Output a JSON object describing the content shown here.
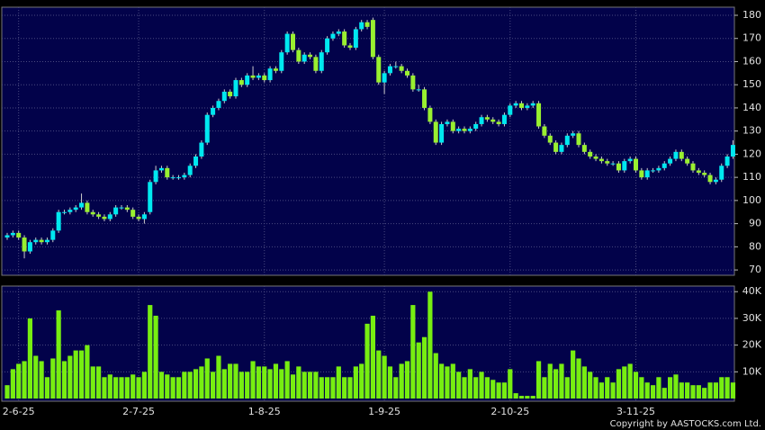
{
  "chart_data": [
    {
      "type": "candlestick",
      "open": [
        84,
        85,
        86,
        84,
        78,
        82,
        83,
        82,
        83,
        87,
        95,
        95,
        96,
        97,
        99,
        95,
        94,
        93,
        92,
        94,
        97,
        97,
        96,
        93,
        92,
        95,
        108,
        113,
        114,
        110,
        110,
        110,
        111,
        115,
        119,
        125,
        137,
        140,
        143,
        147,
        145,
        152,
        150,
        154,
        153,
        154,
        152,
        157,
        156,
        164,
        172,
        165,
        160,
        163,
        162,
        156,
        164,
        170,
        172,
        173,
        167,
        166,
        174,
        177,
        178,
        162,
        151,
        155,
        158,
        158,
        156,
        154,
        148,
        148,
        140,
        134,
        125,
        133,
        134,
        130,
        131,
        130,
        131,
        133,
        136,
        135,
        134,
        133,
        137,
        141,
        142,
        140,
        141,
        142,
        132,
        128,
        125,
        121,
        124,
        128,
        129,
        124,
        121,
        119,
        118,
        117,
        116,
        116,
        113,
        117,
        118,
        113,
        110,
        113,
        113,
        114,
        116,
        118,
        121,
        118,
        116,
        113,
        112,
        111,
        108,
        109,
        115,
        119
      ],
      "high": [
        86,
        87,
        87,
        85,
        83,
        84,
        84,
        84,
        88,
        96,
        96,
        97,
        98,
        103,
        100,
        96,
        95,
        94,
        95,
        98,
        98,
        98,
        97,
        94,
        95,
        109,
        115,
        115,
        115,
        111,
        111,
        112,
        116,
        120,
        126,
        138,
        141,
        144,
        148,
        148,
        153,
        153,
        155,
        158,
        155,
        155,
        158,
        158,
        165,
        173,
        173,
        166,
        164,
        164,
        163,
        165,
        171,
        173,
        174,
        174,
        168,
        175,
        178,
        178,
        179,
        163,
        156,
        159,
        160,
        159,
        157,
        155,
        150,
        149,
        141,
        135,
        134,
        135,
        135,
        132,
        132,
        132,
        134,
        137,
        137,
        136,
        135,
        138,
        142,
        143,
        143,
        142,
        143,
        143,
        133,
        129,
        126,
        125,
        129,
        130,
        130,
        125,
        122,
        120,
        119,
        118,
        117,
        117,
        118,
        119,
        119,
        114,
        114,
        114,
        115,
        117,
        119,
        122,
        122,
        119,
        117,
        114,
        113,
        112,
        110,
        116,
        120,
        126
      ],
      "low": [
        83,
        84,
        83,
        75,
        77,
        81,
        81,
        81,
        82,
        86,
        94,
        94,
        95,
        96,
        94,
        93,
        92,
        91,
        91,
        93,
        96,
        95,
        92,
        91,
        90,
        94,
        107,
        112,
        109,
        109,
        109,
        109,
        110,
        114,
        118,
        124,
        136,
        139,
        142,
        144,
        144,
        149,
        149,
        152,
        152,
        151,
        151,
        155,
        155,
        163,
        164,
        159,
        159,
        161,
        155,
        155,
        163,
        169,
        171,
        166,
        165,
        165,
        173,
        174,
        161,
        150,
        146,
        154,
        157,
        155,
        153,
        147,
        147,
        139,
        133,
        124,
        124,
        132,
        129,
        129,
        129,
        129,
        130,
        132,
        134,
        133,
        132,
        132,
        136,
        140,
        139,
        139,
        140,
        131,
        127,
        124,
        120,
        120,
        123,
        127,
        123,
        120,
        118,
        117,
        116,
        115,
        115,
        112,
        112,
        116,
        112,
        109,
        109,
        112,
        112,
        113,
        115,
        117,
        117,
        115,
        112,
        111,
        110,
        107,
        107,
        108,
        114,
        118
      ],
      "close": [
        85,
        86,
        84,
        78,
        82,
        83,
        82,
        83,
        87,
        95,
        95,
        96,
        97,
        99,
        95,
        94,
        93,
        92,
        94,
        97,
        97,
        96,
        93,
        92,
        94,
        108,
        113,
        114,
        110,
        110,
        110,
        111,
        115,
        119,
        125,
        137,
        140,
        143,
        147,
        145,
        152,
        150,
        154,
        153,
        154,
        152,
        157,
        156,
        164,
        172,
        165,
        160,
        163,
        162,
        156,
        164,
        170,
        172,
        173,
        167,
        166,
        174,
        177,
        175,
        162,
        151,
        155,
        158,
        158,
        156,
        154,
        148,
        148,
        140,
        134,
        125,
        133,
        134,
        130,
        131,
        130,
        131,
        133,
        136,
        135,
        134,
        133,
        137,
        141,
        142,
        140,
        141,
        142,
        132,
        128,
        125,
        121,
        124,
        128,
        129,
        124,
        121,
        119,
        118,
        117,
        116,
        116,
        113,
        117,
        118,
        113,
        110,
        113,
        113,
        114,
        116,
        118,
        121,
        118,
        116,
        113,
        112,
        111,
        108,
        109,
        115,
        119,
        124
      ],
      "up_color": "#00e8f0",
      "down_color": "#99f030",
      "ylim": [
        67.7,
        183.5
      ],
      "yticks": [
        70,
        80,
        90,
        100,
        110,
        120,
        130,
        140,
        150,
        160,
        170,
        180
      ],
      "grid": true
    },
    {
      "type": "bar",
      "categories": [
        null,
        null,
        "2-6-25",
        null,
        null,
        null,
        null,
        null,
        null,
        null,
        null,
        null,
        null,
        null,
        null,
        null,
        null,
        null,
        null,
        null,
        null,
        null,
        null,
        "2-7-25",
        null,
        null,
        null,
        null,
        null,
        null,
        null,
        null,
        null,
        null,
        null,
        null,
        null,
        null,
        null,
        null,
        null,
        null,
        null,
        null,
        null,
        "1-8-25",
        null,
        null,
        null,
        null,
        null,
        null,
        null,
        null,
        null,
        null,
        null,
        null,
        null,
        null,
        null,
        null,
        null,
        null,
        null,
        null,
        "1-9-25",
        null,
        null,
        null,
        null,
        null,
        null,
        null,
        null,
        null,
        null,
        null,
        null,
        null,
        null,
        null,
        null,
        null,
        null,
        null,
        null,
        null,
        "2-10-25",
        null,
        null,
        null,
        null,
        null,
        null,
        null,
        null,
        null,
        null,
        null,
        null,
        null,
        null,
        null,
        null,
        null,
        null,
        null,
        null,
        null,
        "3-11-25",
        null,
        null,
        null,
        null,
        null,
        null,
        null,
        null,
        null,
        null,
        null,
        null,
        null,
        null,
        null,
        null,
        null
      ],
      "values": [
        5000,
        11000,
        13000,
        14000,
        30000,
        16000,
        14000,
        8000,
        15000,
        33000,
        14000,
        16000,
        18000,
        18000,
        20000,
        12000,
        12000,
        8000,
        9000,
        8000,
        8000,
        8000,
        9000,
        8000,
        10000,
        35000,
        31000,
        10000,
        9000,
        8000,
        8000,
        10000,
        10000,
        11000,
        12000,
        15000,
        10000,
        16000,
        11000,
        13000,
        13000,
        10000,
        10000,
        14000,
        12000,
        12000,
        11000,
        13000,
        11000,
        14000,
        9000,
        12000,
        10000,
        10000,
        10000,
        8000,
        8000,
        8000,
        12000,
        8000,
        8000,
        12000,
        13000,
        28000,
        31000,
        18000,
        16000,
        12000,
        8000,
        13000,
        14000,
        35000,
        21000,
        23000,
        40000,
        17000,
        13000,
        12000,
        13000,
        10000,
        8000,
        11000,
        8000,
        10000,
        8000,
        7000,
        6000,
        6000,
        11000,
        2000,
        1000,
        1000,
        1000,
        14000,
        8000,
        13000,
        11000,
        13000,
        8000,
        18000,
        15000,
        12000,
        10000,
        8000,
        6000,
        8000,
        6000,
        11000,
        12000,
        13000,
        10000,
        8000,
        6000,
        5000,
        8000,
        4000,
        8000,
        9000,
        6000,
        6000,
        5000,
        5000,
        4000,
        6000,
        6000,
        8000,
        8000,
        6000
      ],
      "color": "#77ee11",
      "ylim": [
        -1000,
        42100
      ],
      "yticks": [
        {
          "value": 10000,
          "label": "10K"
        },
        {
          "value": 20000,
          "label": "20K"
        },
        {
          "value": 30000,
          "label": "30K"
        },
        {
          "value": 40000,
          "label": "40K"
        }
      ],
      "grid": true
    }
  ],
  "footer": "Copyright by AASTOCKS.com Ltd."
}
